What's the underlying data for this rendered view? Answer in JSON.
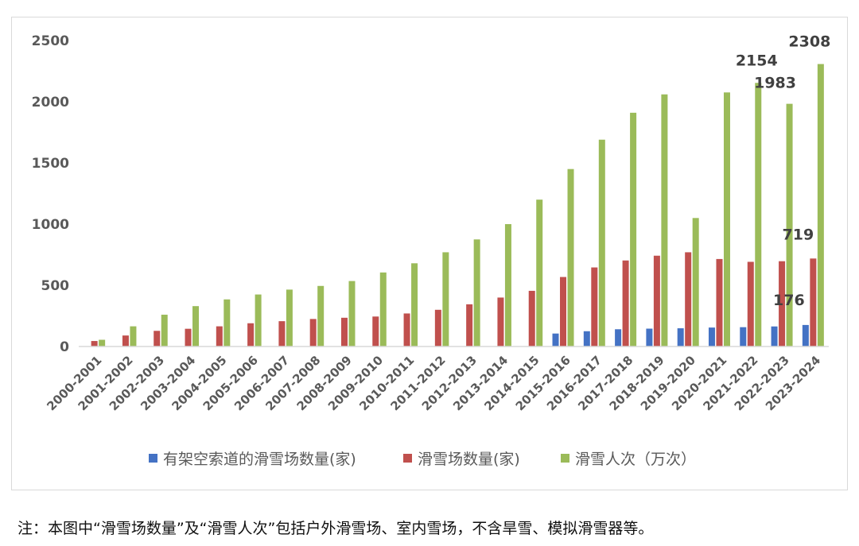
{
  "chart_data": {
    "type": "bar",
    "categories": [
      "2000-2001",
      "2001-2002",
      "2002-2003",
      "2003-2004",
      "2004-2005",
      "2005-2006",
      "2006-2007",
      "2007-2008",
      "2008-2009",
      "2009-2010",
      "2010-2011",
      "2011-2012",
      "2012-2013",
      "2013-2014",
      "2014-2015",
      "2015-2016",
      "2016-2017",
      "2017-2018",
      "2018-2019",
      "2019-2020",
      "2020-2021",
      "2021-2022",
      "2022-2023",
      "2023-2024"
    ],
    "series": [
      {
        "name": "有架空索道的滑雪场数量(家)",
        "color": "#4472c4",
        "values": [
          null,
          null,
          null,
          null,
          null,
          null,
          null,
          null,
          null,
          null,
          null,
          null,
          null,
          null,
          null,
          106,
          125,
          141,
          146,
          149,
          155,
          158,
          164,
          176
        ]
      },
      {
        "name": "滑雪场数量(家)",
        "color": "#c0504d",
        "values": [
          45,
          90,
          128,
          145,
          165,
          190,
          207,
          225,
          235,
          245,
          270,
          300,
          345,
          400,
          455,
          568,
          646,
          703,
          742,
          770,
          715,
          692,
          697,
          719
        ]
      },
      {
        "name": "滑雪人次（万次）",
        "color": "#9bbb59",
        "values": [
          55,
          165,
          260,
          330,
          385,
          425,
          465,
          495,
          535,
          605,
          680,
          770,
          875,
          1000,
          1200,
          1450,
          1690,
          1910,
          2060,
          1050,
          2076,
          2154,
          1983,
          2308
        ]
      }
    ],
    "ylim": [
      0,
      2500
    ],
    "yticks": [
      0,
      500,
      1000,
      1500,
      2000,
      2500
    ],
    "grid": false,
    "legend_position": "bottom",
    "data_labels": [
      {
        "series": 2,
        "index": 21,
        "text": "2154"
      },
      {
        "series": 2,
        "index": 22,
        "text": "1983"
      },
      {
        "series": 2,
        "index": 23,
        "text": "2308"
      },
      {
        "series": 1,
        "index": 23,
        "text": "719"
      },
      {
        "series": 0,
        "index": 23,
        "text": "176"
      }
    ]
  },
  "footnote": "注：本图中“滑雪场数量”及“滑雪人次”包括户外滑雪场、室内雪场，不含旱雪、模拟滑雪器等。"
}
